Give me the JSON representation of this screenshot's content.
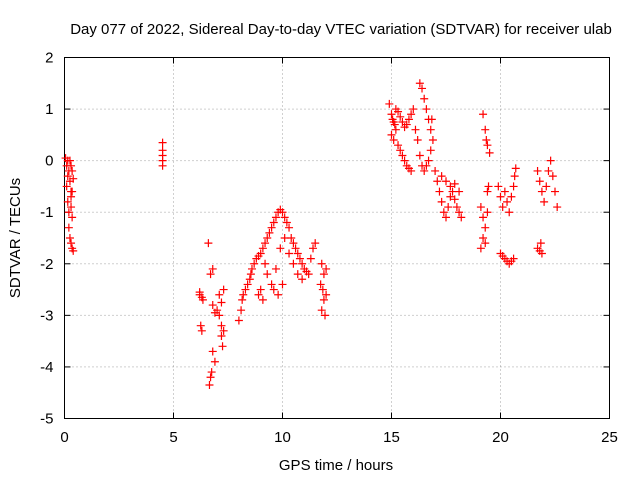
{
  "chart_data": {
    "type": "scatter",
    "title": "Day 077 of 2022, Sidereal Day-to-day VTEC variation (SDTVAR) for receiver ulab",
    "xlabel": "GPS time / hours",
    "ylabel": "SDTVAR / TECUs",
    "xlim": [
      0,
      25
    ],
    "ylim": [
      -5,
      2
    ],
    "xticks": [
      0,
      5,
      10,
      15,
      20,
      25
    ],
    "yticks": [
      -5,
      -4,
      -3,
      -2,
      -1,
      0,
      1,
      2
    ],
    "xtick_labels": [
      "0",
      "5",
      "10",
      "15",
      "20",
      "25"
    ],
    "ytick_labels": [
      "-5",
      "-4",
      "-3",
      "-2",
      "-1",
      "0",
      "1",
      "2"
    ],
    "grid": true,
    "marker": "plus",
    "series_color": "#ff0000",
    "series": [
      {
        "name": "SDTVAR",
        "points": [
          [
            0.05,
            0.05
          ],
          [
            0.1,
            -0.1
          ],
          [
            0.15,
            -0.3
          ],
          [
            0.1,
            -0.5
          ],
          [
            0.15,
            -0.8
          ],
          [
            0.2,
            -1.0
          ],
          [
            0.2,
            -1.3
          ],
          [
            0.25,
            -1.5
          ],
          [
            0.3,
            -1.6
          ],
          [
            0.35,
            -1.7
          ],
          [
            0.4,
            -1.75
          ],
          [
            0.15,
            0.0
          ],
          [
            0.2,
            -0.2
          ],
          [
            0.25,
            -0.4
          ],
          [
            0.3,
            -0.6
          ],
          [
            0.3,
            -0.9
          ],
          [
            0.35,
            -1.1
          ],
          [
            0.25,
            0.0
          ],
          [
            0.3,
            -0.1
          ],
          [
            0.35,
            -0.2
          ],
          [
            0.4,
            -0.35
          ],
          [
            0.3,
            -0.7
          ],
          [
            0.35,
            -0.6
          ],
          [
            4.5,
            0.35
          ],
          [
            4.5,
            0.2
          ],
          [
            4.5,
            0.1
          ],
          [
            4.5,
            0.0
          ],
          [
            4.5,
            -0.1
          ],
          [
            6.2,
            -2.6
          ],
          [
            6.3,
            -2.65
          ],
          [
            6.25,
            -3.2
          ],
          [
            6.3,
            -3.3
          ],
          [
            6.2,
            -2.55
          ],
          [
            6.35,
            -2.7
          ],
          [
            6.6,
            -1.6
          ],
          [
            6.7,
            -2.2
          ],
          [
            6.8,
            -2.1
          ],
          [
            6.8,
            -2.8
          ],
          [
            6.9,
            -2.95
          ],
          [
            6.8,
            -3.7
          ],
          [
            6.9,
            -3.9
          ],
          [
            6.7,
            -4.2
          ],
          [
            6.65,
            -4.35
          ],
          [
            6.75,
            -4.1
          ],
          [
            7.0,
            -2.9
          ],
          [
            7.1,
            -3.0
          ],
          [
            7.2,
            -3.2
          ],
          [
            7.2,
            -3.4
          ],
          [
            7.25,
            -3.6
          ],
          [
            7.3,
            -3.3
          ],
          [
            7.2,
            -2.75
          ],
          [
            7.1,
            -2.6
          ],
          [
            7.3,
            -2.5
          ],
          [
            8.0,
            -3.1
          ],
          [
            8.1,
            -2.9
          ],
          [
            8.15,
            -2.7
          ],
          [
            8.2,
            -2.6
          ],
          [
            8.3,
            -2.5
          ],
          [
            8.4,
            -2.4
          ],
          [
            8.5,
            -2.3
          ],
          [
            8.55,
            -2.2
          ],
          [
            8.6,
            -2.1
          ],
          [
            8.7,
            -2.0
          ],
          [
            8.8,
            -1.9
          ],
          [
            8.9,
            -1.85
          ],
          [
            9.0,
            -1.8
          ],
          [
            9.1,
            -1.7
          ],
          [
            9.2,
            -1.6
          ],
          [
            9.3,
            -1.5
          ],
          [
            9.4,
            -1.4
          ],
          [
            9.5,
            -1.3
          ],
          [
            9.6,
            -1.2
          ],
          [
            9.7,
            -1.1
          ],
          [
            9.8,
            -1.0
          ],
          [
            9.9,
            -0.95
          ],
          [
            10.0,
            -1.0
          ],
          [
            10.1,
            -1.1
          ],
          [
            10.2,
            -1.2
          ],
          [
            10.3,
            -1.3
          ],
          [
            10.4,
            -1.5
          ],
          [
            10.5,
            -1.6
          ],
          [
            10.6,
            -1.7
          ],
          [
            10.7,
            -1.8
          ],
          [
            10.8,
            -1.9
          ],
          [
            10.9,
            -2.0
          ],
          [
            11.0,
            -2.1
          ],
          [
            11.1,
            -2.15
          ],
          [
            11.2,
            -2.2
          ],
          [
            11.3,
            -1.9
          ],
          [
            11.4,
            -1.7
          ],
          [
            11.5,
            -1.6
          ],
          [
            9.2,
            -2.0
          ],
          [
            9.3,
            -2.2
          ],
          [
            9.5,
            -2.4
          ],
          [
            9.7,
            -2.1
          ],
          [
            9.9,
            -1.7
          ],
          [
            10.1,
            -1.5
          ],
          [
            10.3,
            -1.8
          ],
          [
            10.5,
            -2.0
          ],
          [
            10.7,
            -2.2
          ],
          [
            10.9,
            -2.3
          ],
          [
            9.0,
            -2.5
          ],
          [
            9.1,
            -2.7
          ],
          [
            8.9,
            -2.6
          ],
          [
            9.6,
            -2.5
          ],
          [
            9.8,
            -2.6
          ],
          [
            10.0,
            -2.4
          ],
          [
            11.8,
            -2.0
          ],
          [
            11.9,
            -2.2
          ],
          [
            11.85,
            -2.5
          ],
          [
            11.9,
            -2.7
          ],
          [
            11.8,
            -2.9
          ],
          [
            11.95,
            -3.0
          ],
          [
            12.0,
            -2.6
          ],
          [
            12.0,
            -2.1
          ],
          [
            11.75,
            -2.4
          ],
          [
            14.9,
            1.1
          ],
          [
            15.0,
            0.9
          ],
          [
            15.1,
            0.75
          ],
          [
            15.2,
            0.6
          ],
          [
            15.0,
            0.5
          ],
          [
            15.1,
            0.4
          ],
          [
            15.3,
            0.3
          ],
          [
            15.4,
            0.2
          ],
          [
            15.5,
            0.1
          ],
          [
            15.6,
            0.0
          ],
          [
            15.7,
            -0.1
          ],
          [
            15.8,
            -0.15
          ],
          [
            15.9,
            -0.2
          ],
          [
            15.2,
            1.0
          ],
          [
            15.3,
            0.95
          ],
          [
            15.4,
            0.85
          ],
          [
            15.5,
            0.75
          ],
          [
            15.6,
            0.65
          ],
          [
            15.7,
            0.7
          ],
          [
            15.8,
            0.8
          ],
          [
            15.9,
            0.9
          ],
          [
            16.0,
            1.0
          ],
          [
            16.1,
            0.6
          ],
          [
            16.2,
            0.4
          ],
          [
            16.3,
            1.5
          ],
          [
            16.4,
            1.4
          ],
          [
            16.5,
            1.2
          ],
          [
            16.6,
            1.0
          ],
          [
            16.7,
            0.8
          ],
          [
            16.8,
            0.6
          ],
          [
            16.3,
            0.1
          ],
          [
            16.4,
            -0.1
          ],
          [
            16.5,
            -0.2
          ],
          [
            16.6,
            -0.1
          ],
          [
            16.7,
            0.0
          ],
          [
            16.8,
            0.2
          ],
          [
            16.9,
            0.4
          ],
          [
            16.85,
            0.8
          ],
          [
            15.05,
            0.8
          ],
          [
            15.15,
            0.7
          ],
          [
            17.0,
            -0.2
          ],
          [
            17.1,
            -0.4
          ],
          [
            17.2,
            -0.6
          ],
          [
            17.3,
            -0.8
          ],
          [
            17.4,
            -1.0
          ],
          [
            17.5,
            -1.1
          ],
          [
            17.6,
            -0.9
          ],
          [
            17.7,
            -0.7
          ],
          [
            17.8,
            -0.6
          ],
          [
            17.9,
            -0.75
          ],
          [
            18.0,
            -0.9
          ],
          [
            18.1,
            -1.0
          ],
          [
            18.2,
            -1.1
          ],
          [
            17.3,
            -0.3
          ],
          [
            17.5,
            -0.4
          ],
          [
            17.7,
            -0.5
          ],
          [
            17.9,
            -0.45
          ],
          [
            18.1,
            -0.6
          ],
          [
            19.2,
            0.9
          ],
          [
            19.3,
            0.6
          ],
          [
            19.35,
            0.4
          ],
          [
            19.4,
            0.3
          ],
          [
            19.5,
            0.15
          ],
          [
            19.1,
            -0.9
          ],
          [
            19.2,
            -1.1
          ],
          [
            19.3,
            -1.3
          ],
          [
            19.4,
            -1.0
          ],
          [
            19.2,
            -1.5
          ],
          [
            19.1,
            -1.7
          ],
          [
            19.3,
            -1.6
          ],
          [
            19.4,
            -0.6
          ],
          [
            19.45,
            -0.5
          ],
          [
            19.9,
            -0.5
          ],
          [
            20.0,
            -0.7
          ],
          [
            20.1,
            -0.9
          ],
          [
            20.2,
            -0.6
          ],
          [
            20.3,
            -0.8
          ],
          [
            20.4,
            -1.0
          ],
          [
            20.5,
            -0.7
          ],
          [
            20.6,
            -0.5
          ],
          [
            20.65,
            -0.3
          ],
          [
            20.7,
            -0.15
          ],
          [
            20.0,
            -1.8
          ],
          [
            20.1,
            -1.85
          ],
          [
            20.2,
            -1.9
          ],
          [
            20.3,
            -1.95
          ],
          [
            20.4,
            -2.0
          ],
          [
            20.5,
            -1.95
          ],
          [
            20.6,
            -1.9
          ],
          [
            21.7,
            -1.7
          ],
          [
            21.8,
            -1.75
          ],
          [
            21.9,
            -1.8
          ],
          [
            21.85,
            -1.6
          ],
          [
            21.7,
            -0.2
          ],
          [
            21.8,
            -0.4
          ],
          [
            21.9,
            -0.6
          ],
          [
            22.0,
            -0.8
          ],
          [
            22.1,
            -0.5
          ],
          [
            22.2,
            -0.2
          ],
          [
            22.3,
            0.0
          ],
          [
            22.4,
            -0.3
          ],
          [
            22.5,
            -0.6
          ],
          [
            22.6,
            -0.9
          ]
        ]
      }
    ]
  }
}
